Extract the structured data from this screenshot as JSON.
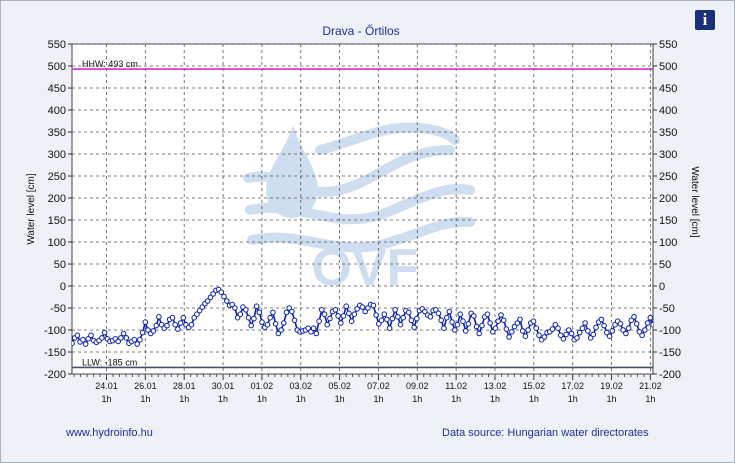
{
  "chart_data": {
    "type": "line",
    "title": "Drava - Őrtilos",
    "ylabel": "Water level [cm]",
    "ylim": [
      -200,
      550
    ],
    "yticks": [
      550,
      500,
      450,
      400,
      350,
      300,
      250,
      200,
      150,
      100,
      50,
      0,
      -50,
      -100,
      -150,
      -200
    ],
    "y2ticks": [
      550,
      500,
      450,
      400,
      350,
      300,
      250,
      200,
      150,
      100,
      50,
      0,
      -50,
      -100,
      -150,
      -200
    ],
    "xticks": [
      {
        "date": "24.01",
        "hour": "1h"
      },
      {
        "date": "26.01",
        "hour": "1h"
      },
      {
        "date": "28.01",
        "hour": "1h"
      },
      {
        "date": "30.01",
        "hour": "1h"
      },
      {
        "date": "01.02",
        "hour": "1h"
      },
      {
        "date": "03.02",
        "hour": "1h"
      },
      {
        "date": "05.02",
        "hour": "1h"
      },
      {
        "date": "07.02",
        "hour": "1h"
      },
      {
        "date": "09.02",
        "hour": "1h"
      },
      {
        "date": "11.02",
        "hour": "1h"
      },
      {
        "date": "13.02",
        "hour": "1h"
      },
      {
        "date": "15.02",
        "hour": "1h"
      },
      {
        "date": "17.02",
        "hour": "1h"
      },
      {
        "date": "19.02",
        "hour": "1h"
      },
      {
        "date": "21.02",
        "hour": "1h"
      }
    ],
    "grid": true,
    "hlines": [
      {
        "label": "HHW: 493 cm",
        "value": 493,
        "color": "#d22bd2"
      },
      {
        "label": "LLW: -185 cm",
        "value": -185,
        "color": "#44506a"
      }
    ],
    "series": [
      {
        "color": "#0a1fb0",
        "values": [
          -130,
          -118,
          -112,
          -127,
          -122,
          -132,
          -120,
          -112,
          -124,
          -128,
          -124,
          -118,
          -106,
          -120,
          -126,
          -124,
          -120,
          -126,
          -118,
          -108,
          -118,
          -130,
          -126,
          -122,
          -132,
          -122,
          -106,
          -82,
          -100,
          -108,
          -102,
          -90,
          -70,
          -88,
          -96,
          -90,
          -76,
          -72,
          -88,
          -98,
          -84,
          -72,
          -88,
          -94,
          -88,
          -72,
          -64,
          -56,
          -48,
          -40,
          -34,
          -26,
          -18,
          -10,
          -8,
          -14,
          -24,
          -34,
          -44,
          -42,
          -50,
          -72,
          -64,
          -48,
          -54,
          -72,
          -90,
          -74,
          -46,
          -60,
          -82,
          -94,
          -88,
          -72,
          -60,
          -86,
          -108,
          -100,
          -84,
          -60,
          -50,
          -58,
          -78,
          -100,
          -104,
          -102,
          -100,
          -96,
          -104,
          -96,
          -108,
          -80,
          -54,
          -64,
          -88,
          -74,
          -58,
          -54,
          -68,
          -84,
          -68,
          -46,
          -62,
          -80,
          -64,
          -52,
          -44,
          -48,
          -58,
          -50,
          -42,
          -44,
          -66,
          -86,
          -78,
          -64,
          -76,
          -96,
          -74,
          -54,
          -70,
          -88,
          -72,
          -56,
          -60,
          -78,
          -94,
          -74,
          -56,
          -52,
          -58,
          -66,
          -70,
          -56,
          -54,
          -62,
          -78,
          -96,
          -72,
          -58,
          -82,
          -100,
          -88,
          -64,
          -80,
          -102,
          -86,
          -62,
          -68,
          -92,
          -108,
          -90,
          -70,
          -64,
          -84,
          -104,
          -96,
          -80,
          -66,
          -78,
          -98,
          -116,
          -104,
          -92,
          -84,
          -76,
          -102,
          -114,
          -100,
          -84,
          -80,
          -96,
          -112,
          -122,
          -116,
          -106,
          -104,
          -98,
          -88,
          -96,
          -112,
          -120,
          -110,
          -100,
          -108,
          -122,
          -118,
          -106,
          -96,
          -84,
          -102,
          -118,
          -110,
          -94,
          -82,
          -76,
          -90,
          -106,
          -114,
          -102,
          -88,
          -80,
          -86,
          -100,
          -108,
          -96,
          -78,
          -70,
          -86,
          -104,
          -112,
          -100,
          -84,
          -72,
          -88
        ]
      }
    ]
  },
  "watermark": {
    "text": "OVF"
  },
  "footer": {
    "left": "www.hydroinfo.hu",
    "right": "Data source: Hungarian water directorates"
  },
  "info_button": {
    "label": "i",
    "icon": "info-icon"
  }
}
